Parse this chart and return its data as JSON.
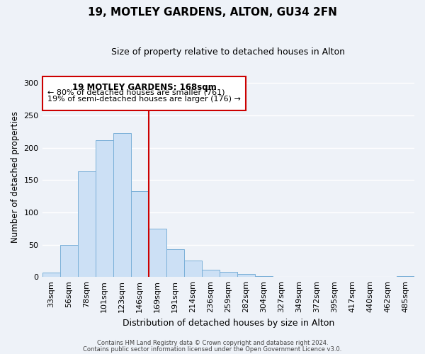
{
  "title": "19, MOTLEY GARDENS, ALTON, GU34 2FN",
  "subtitle": "Size of property relative to detached houses in Alton",
  "xlabel": "Distribution of detached houses by size in Alton",
  "ylabel": "Number of detached properties",
  "bar_labels": [
    "33sqm",
    "56sqm",
    "78sqm",
    "101sqm",
    "123sqm",
    "146sqm",
    "169sqm",
    "191sqm",
    "214sqm",
    "236sqm",
    "259sqm",
    "282sqm",
    "304sqm",
    "327sqm",
    "349sqm",
    "372sqm",
    "395sqm",
    "417sqm",
    "440sqm",
    "462sqm",
    "485sqm"
  ],
  "bar_values": [
    7,
    50,
    163,
    211,
    222,
    133,
    75,
    43,
    25,
    11,
    8,
    5,
    1,
    0,
    0,
    0,
    0,
    0,
    0,
    0,
    1
  ],
  "bar_color": "#cce0f5",
  "bar_edge_color": "#7ab0d8",
  "annotation_title": "19 MOTLEY GARDENS: 168sqm",
  "annotation_line1": "← 80% of detached houses are smaller (761)",
  "annotation_line2": "19% of semi-detached houses are larger (176) →",
  "annotation_box_edge": "#cc0000",
  "annotation_text_color": "#000000",
  "highlight_line_color": "#cc0000",
  "ylim": [
    0,
    310
  ],
  "yticks": [
    0,
    50,
    100,
    150,
    200,
    250,
    300
  ],
  "footer1": "Contains HM Land Registry data © Crown copyright and database right 2024.",
  "footer2": "Contains public sector information licensed under the Open Government Licence v3.0.",
  "background_color": "#eef2f8",
  "plot_background": "#eef2f8",
  "grid_color": "#ffffff",
  "title_fontsize": 11,
  "subtitle_fontsize": 9
}
